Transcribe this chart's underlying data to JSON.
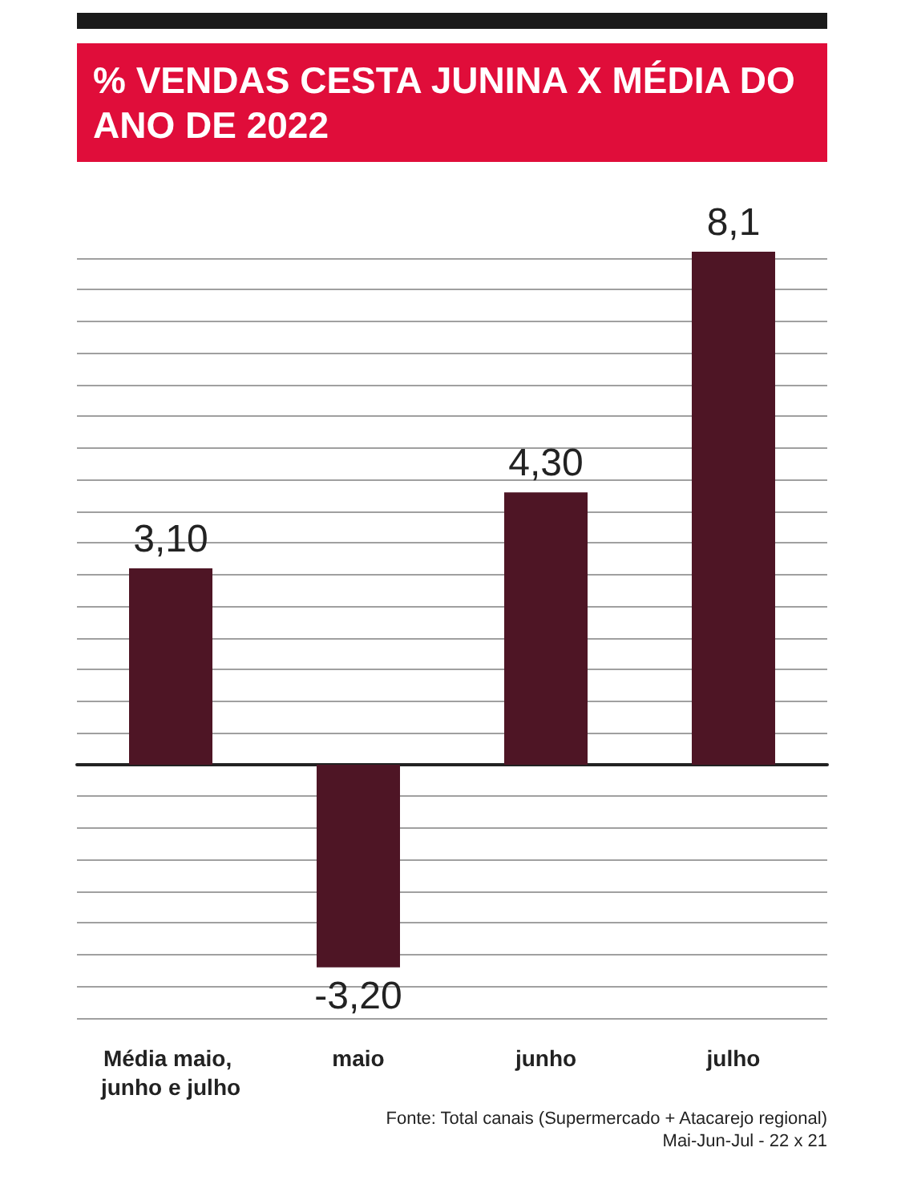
{
  "chart_data": {
    "type": "bar",
    "title": "% VENDAS CESTA JUNINA X MÉDIA DO ANO DE 2022",
    "categories": [
      "Média maio, junho e julho",
      "maio",
      "junho",
      "julho"
    ],
    "values": [
      3.1,
      -3.2,
      4.3,
      8.1
    ],
    "value_labels": [
      "3,10",
      "-3,20",
      "4,30",
      "8,1"
    ],
    "color": "#4e1525",
    "ylim": [
      -4,
      8.2
    ],
    "yticks": [
      {
        "value": -4,
        "label": null
      },
      {
        "value": -3.5,
        "label": null
      },
      {
        "value": -3,
        "label": null
      },
      {
        "value": -2.5,
        "label": null
      },
      {
        "value": -2,
        "label": null
      },
      {
        "value": -1.5,
        "label": null
      },
      {
        "value": -1,
        "label": null
      },
      {
        "value": -0.5,
        "label": null
      },
      {
        "value": 0.5,
        "label": null
      },
      {
        "value": 1,
        "label": null
      },
      {
        "value": 1.5,
        "label": null
      },
      {
        "value": 2,
        "label": null
      },
      {
        "value": 2.5,
        "label": null
      },
      {
        "value": 3,
        "label": null
      },
      {
        "value": 3.5,
        "label": null
      },
      {
        "value": 4,
        "label": null
      },
      {
        "value": 4.5,
        "label": null
      },
      {
        "value": 5,
        "label": null
      },
      {
        "value": 5.5,
        "label": null
      },
      {
        "value": 6,
        "label": null
      },
      {
        "value": 6.5,
        "label": null
      },
      {
        "value": 7,
        "label": null
      },
      {
        "value": 7.5,
        "label": null
      },
      {
        "value": 8,
        "label": null
      }
    ],
    "grid": "y",
    "tick_labels": "x",
    "annotations": [
      "Fonte: Total canais (Supermercado + Atacarejo regional)",
      "Mai-Jun-Jul - 22 x 21"
    ]
  }
}
